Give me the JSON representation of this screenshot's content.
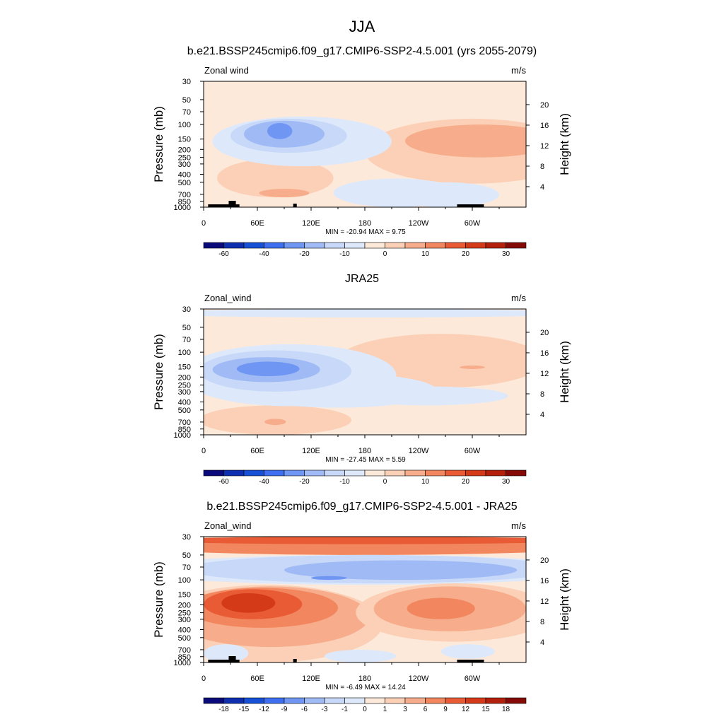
{
  "figure": {
    "title": "JJA"
  },
  "palettes": {
    "full": [
      "#0a0a7a",
      "#0d2fb0",
      "#1650d6",
      "#3d6ff0",
      "#6f96f2",
      "#9fbaf5",
      "#c7d8f8",
      "#dde9fb",
      "#fde9da",
      "#fbd0b6",
      "#f7ad8c",
      "#f2875f",
      "#e85b35",
      "#d43a18",
      "#b3200c",
      "#850a05"
    ],
    "full_ticks": [
      "-60",
      "-40",
      "-20",
      "-10",
      "0",
      "10",
      "20",
      "30"
    ],
    "full_tick_pos": [
      1,
      3,
      5,
      7,
      9,
      11,
      13,
      15
    ],
    "diff_ticks": [
      "-18",
      "-15",
      "-12",
      "-9",
      "-6",
      "-3",
      "-1",
      "0",
      "1",
      "3",
      "6",
      "9",
      "12",
      "15",
      "18"
    ],
    "diff_tick_pos": [
      1,
      2,
      3,
      4,
      5,
      6,
      7,
      8,
      9,
      10,
      11,
      12,
      13,
      14,
      15
    ]
  },
  "axes": {
    "left_label": "Pressure (mb)",
    "right_label": "Height (km)",
    "pressure_ticks": [
      "30",
      "50",
      "70",
      "100",
      "150",
      "200",
      "250",
      "300",
      "400",
      "500",
      "700",
      "850",
      "1000"
    ],
    "pressure_values": [
      30,
      50,
      70,
      100,
      150,
      200,
      250,
      300,
      400,
      500,
      700,
      850,
      1000
    ],
    "height_ticks": [
      "4",
      "8",
      "12",
      "16",
      "20"
    ],
    "height_values": [
      4,
      8,
      12,
      16,
      20
    ],
    "lon_ticks": [
      "0",
      "60E",
      "120E",
      "180",
      "120W",
      "60W"
    ],
    "lon_values": [
      0,
      60,
      120,
      180,
      240,
      300
    ]
  },
  "panels": [
    {
      "title": "b.e21.BSSP245cmip6.f09_g17.CMIP6-SSP2-4.5.001 (yrs 2055-2079)",
      "var_label": "Zonal wind",
      "units": "m/s",
      "stats": "MIN = -20.94  MAX =   9.75",
      "palette": "full",
      "topography": true
    },
    {
      "title": "JRA25",
      "var_label": "Zonal_wind",
      "units": "m/s",
      "stats": "MIN = -27.45  MAX =   5.59",
      "palette": "full",
      "topography": false
    },
    {
      "title": "b.e21.BSSP245cmip6.f09_g17.CMIP6-SSP2-4.5.001 - JRA25",
      "var_label": "Zonal_wind",
      "units": "m/s",
      "stats": "MIN = -6.49  MAX = 14.24",
      "palette": "diff",
      "topography": true
    }
  ],
  "chart_data": [
    {
      "type": "heatmap",
      "title": "b.e21.BSSP245cmip6.f09_g17.CMIP6-SSP2-4.5.001 (yrs 2055-2079)",
      "variable": "Zonal wind",
      "units": "m/s",
      "xlabel": "",
      "ylabel": "Pressure (mb)",
      "y2label": "Height (km)",
      "xlim": [
        0,
        360
      ],
      "ylim": [
        1000,
        30
      ],
      "yscale": "log",
      "min": -20.94,
      "max": 9.75,
      "features": [
        {
          "kind": "jet",
          "sign": "negative",
          "lon": 90,
          "pressure_mb": 110,
          "approx_max_mps": -20
        },
        {
          "kind": "jet",
          "sign": "positive",
          "lon": 305,
          "pressure_mb": 120,
          "approx_max_mps": 10
        },
        {
          "kind": "band",
          "sign": "positive",
          "lon_range": [
            25,
            135
          ],
          "pressure_range": [
            220,
            900
          ],
          "approx_mps": 5
        },
        {
          "kind": "band",
          "sign": "negative",
          "lon_range": [
            160,
            285
          ],
          "pressure_range": [
            420,
            1000
          ],
          "approx_mps": -3
        }
      ],
      "colorbar_levels": [
        -70,
        -60,
        -50,
        -40,
        -30,
        -20,
        -15,
        -10,
        -5,
        0,
        5,
        10,
        15,
        20,
        25,
        30,
        35
      ]
    },
    {
      "type": "heatmap",
      "title": "JRA25",
      "variable": "Zonal_wind",
      "units": "m/s",
      "xlabel": "",
      "ylabel": "Pressure (mb)",
      "y2label": "Height (km)",
      "xlim": [
        0,
        360
      ],
      "ylim": [
        1000,
        30
      ],
      "yscale": "log",
      "min": -27.45,
      "max": 5.59,
      "features": [
        {
          "kind": "jet",
          "sign": "negative",
          "lon": 70,
          "pressure_mb": 150,
          "approx_max_mps": -25
        },
        {
          "kind": "band",
          "sign": "positive",
          "lon_range": [
            180,
            340
          ],
          "pressure_range": [
            80,
            260
          ],
          "approx_mps": 5
        },
        {
          "kind": "band",
          "sign": "negative",
          "lon_range": [
            0,
            360
          ],
          "pressure_range": [
            30,
            40
          ],
          "approx_mps": -5
        }
      ],
      "colorbar_levels": [
        -70,
        -60,
        -50,
        -40,
        -30,
        -20,
        -15,
        -10,
        -5,
        0,
        5,
        10,
        15,
        20,
        25,
        30,
        35
      ]
    },
    {
      "type": "heatmap",
      "title": "b.e21.BSSP245cmip6.f09_g17.CMIP6-SSP2-4.5.001 - JRA25",
      "variable": "Zonal_wind",
      "units": "m/s",
      "xlabel": "",
      "ylabel": "Pressure (mb)",
      "y2label": "Height (km)",
      "xlim": [
        0,
        360
      ],
      "ylim": [
        1000,
        30
      ],
      "yscale": "log",
      "min": -6.49,
      "max": 14.24,
      "features": [
        {
          "kind": "jet",
          "sign": "positive",
          "lon": 48,
          "pressure_mb": 170,
          "approx_max_mps": 14
        },
        {
          "kind": "jet",
          "sign": "positive",
          "lon": 260,
          "pressure_mb": 210,
          "approx_max_mps": 9
        },
        {
          "kind": "band",
          "sign": "negative",
          "lon_range": [
            0,
            360
          ],
          "pressure_range": [
            45,
            100
          ],
          "approx_mps": -4
        },
        {
          "kind": "band",
          "sign": "positive",
          "lon_range": [
            0,
            360
          ],
          "pressure_range": [
            30,
            38
          ],
          "approx_mps": 7
        }
      ],
      "colorbar_levels": [
        -21,
        -18,
        -15,
        -12,
        -9,
        -6,
        -3,
        -1,
        0,
        1,
        3,
        6,
        9,
        12,
        15,
        18,
        21
      ]
    }
  ]
}
